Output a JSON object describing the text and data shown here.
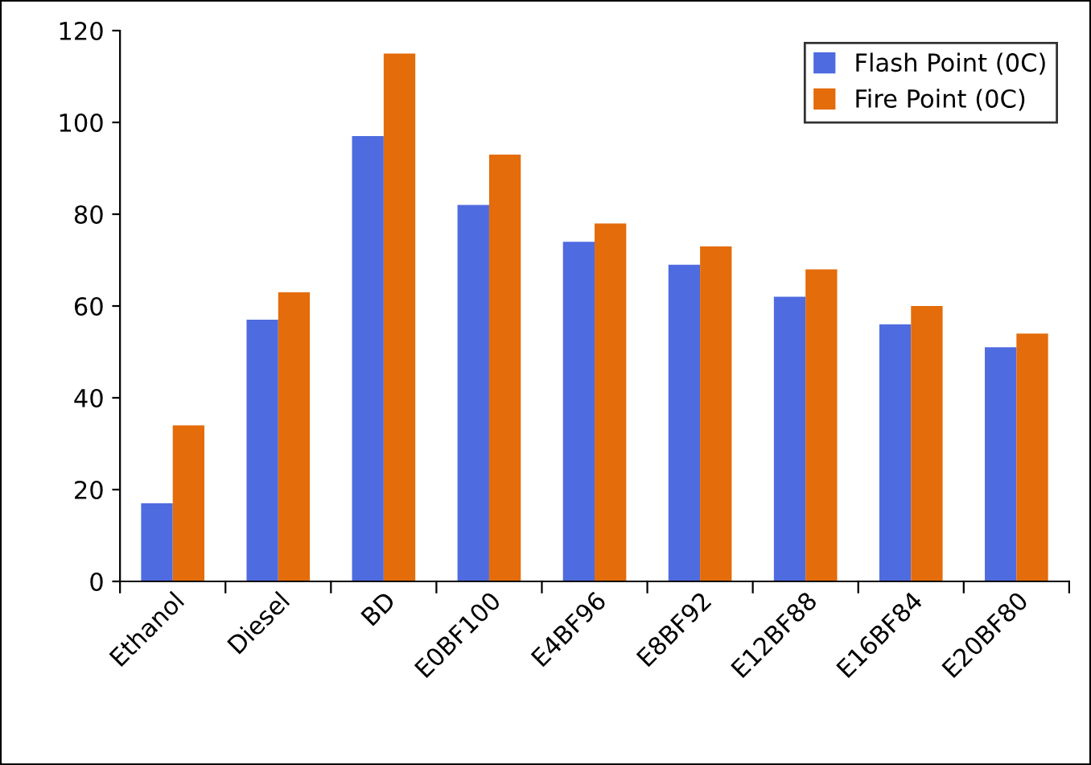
{
  "chart_data": {
    "type": "bar",
    "categories": [
      "Ethanol",
      "Diesel",
      "BD",
      "E0BF100",
      "E4BF96",
      "E8BF92",
      "E12BF88",
      "E16BF84",
      "E20BF80"
    ],
    "series": [
      {
        "name": "Flash Point (0C)",
        "color": "#4f6be0",
        "values": [
          17,
          57,
          97,
          82,
          74,
          69,
          62,
          56,
          51
        ]
      },
      {
        "name": "Fire Point (0C)",
        "color": "#e46c0a",
        "values": [
          34,
          63,
          115,
          93,
          78,
          73,
          68,
          60,
          54
        ]
      }
    ],
    "ylim": [
      0,
      120
    ],
    "yticks": [
      0,
      20,
      40,
      60,
      80,
      100,
      120
    ],
    "grid": false,
    "legend": "top right"
  }
}
